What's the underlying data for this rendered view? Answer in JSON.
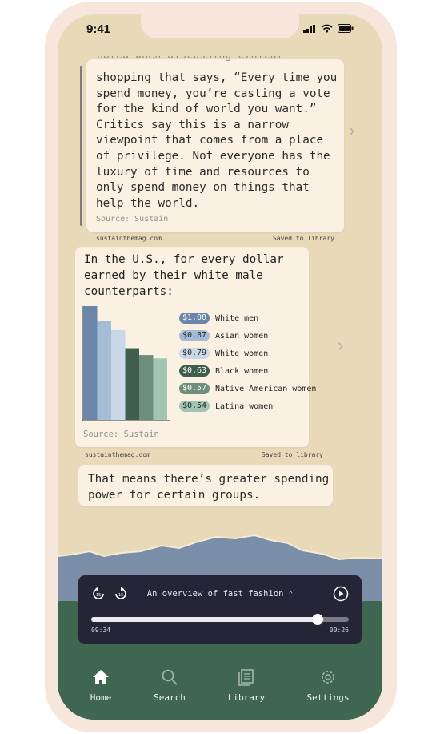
{
  "status_bar": {
    "time": "9:41"
  },
  "card_quote": {
    "partial_line": "noted when discussing ethical",
    "text": "shopping that says, “Every time you spend money, you’re casting a vote for the kind of world you want.” Critics say this is a narrow viewpoint that comes from a place of privilege. Not everyone has the luxury of time and resources to only spend money on things that help the world.",
    "source": "Source: Sustain",
    "site": "sustainthemag.com",
    "saved": "Saved to library"
  },
  "card_chart": {
    "title": "In the U.S., for every dollar earned by their white male counterparts:",
    "source": "Source: Sustain",
    "site": "sustainthemag.com",
    "saved": "Saved to library"
  },
  "chart_data": {
    "type": "bar",
    "title": "In the U.S., for every dollar earned by their white male counterparts:",
    "categories": [
      "White men",
      "Asian women",
      "White women",
      "Black women",
      "Native American women",
      "Latina women"
    ],
    "values": [
      1.0,
      0.87,
      0.79,
      0.63,
      0.57,
      0.54
    ],
    "value_labels": [
      "$1.00",
      "$0.87",
      "$0.79",
      "$0.63",
      "$0.57",
      "$0.54"
    ],
    "colors": [
      "#6b86a8",
      "#a5bcd7",
      "#c9d7e8",
      "#3f5e4e",
      "#6e8e7c",
      "#a2c4b2"
    ],
    "legend_text_colors": [
      "#ffffff",
      "#2a2a2a",
      "#2a2a2a",
      "#ffffff",
      "#ffffff",
      "#2a2a2a"
    ],
    "ylim": [
      0,
      1.0
    ],
    "legend_placement": "right",
    "grid": false
  },
  "card_text": {
    "text": "That means there’s greater spending power for certain groups."
  },
  "player": {
    "title": "An overview of fast fashion",
    "elapsed": "09:34",
    "remaining": "00:26",
    "progress": 0.88
  },
  "tabs": [
    {
      "label": "Home",
      "icon": "home-icon",
      "active": true
    },
    {
      "label": "Search",
      "icon": "search-icon",
      "active": false
    },
    {
      "label": "Library",
      "icon": "library-icon",
      "active": false
    },
    {
      "label": "Settings",
      "icon": "gear-icon",
      "active": false
    }
  ],
  "colors": {
    "background": "#e8d9b9",
    "card": "#fbf1e2",
    "player": "#262437",
    "mountain": "#7a8ea8",
    "field": "#3f6650"
  }
}
